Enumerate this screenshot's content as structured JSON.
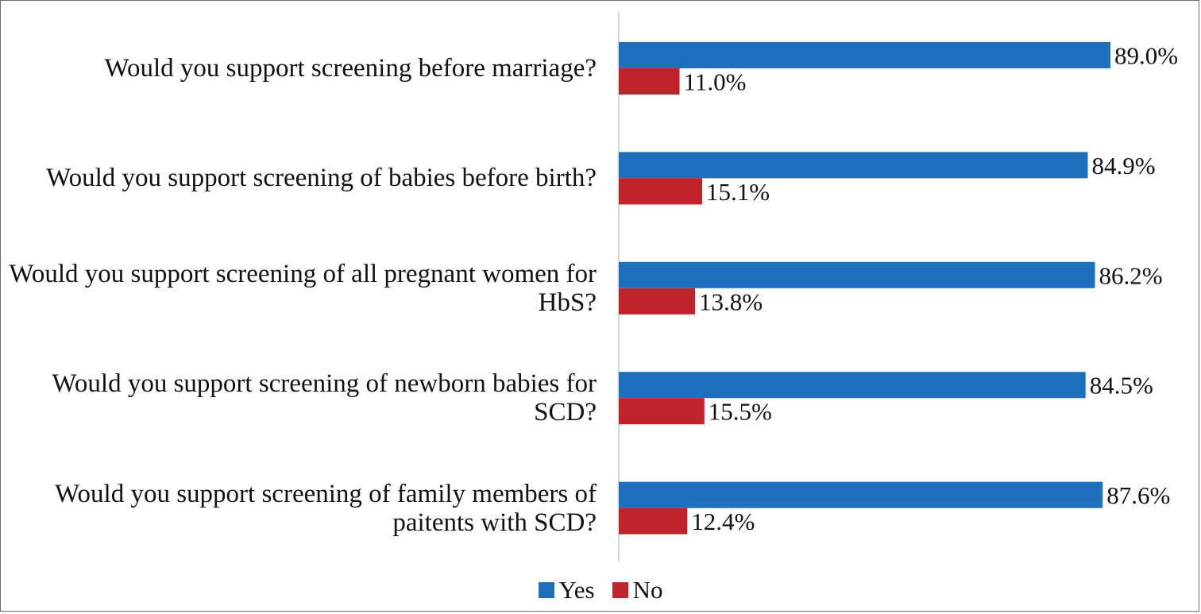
{
  "chart_data": {
    "type": "bar",
    "orientation": "horizontal",
    "categories": [
      "Would you support screening before marriage?",
      "Would you support screening of babies before birth?",
      "Would you support screening of all pregnant women for HbS?",
      "Would you support screening of newborn babies for SCD?",
      "Would you support screening of family members of paitents with SCD?"
    ],
    "series": [
      {
        "name": "Yes",
        "color": "#1f6fbf",
        "values": [
          89.0,
          84.9,
          86.2,
          84.5,
          87.6
        ],
        "labels": [
          "89.0%",
          "84.9%",
          "86.2%",
          "84.5%",
          "87.6%"
        ]
      },
      {
        "name": "No",
        "color": "#c0242a",
        "values": [
          11.0,
          15.1,
          13.8,
          15.5,
          12.4
        ],
        "labels": [
          "11.0%",
          "15.1%",
          "13.8%",
          "15.5%",
          "12.4%"
        ]
      }
    ],
    "xlim": [
      0,
      100
    ],
    "grid": false,
    "legend_position": "bottom"
  }
}
